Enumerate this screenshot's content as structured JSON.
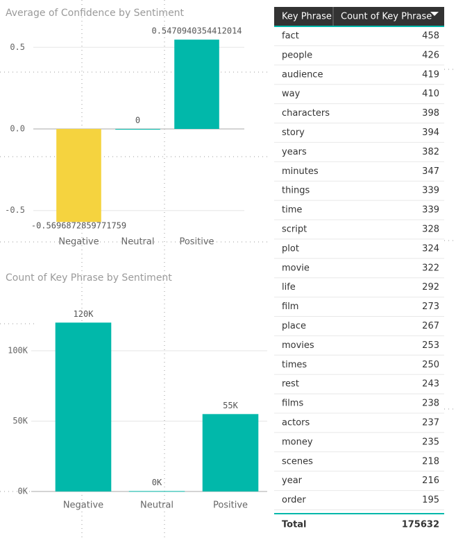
{
  "chart_data": [
    {
      "type": "bar",
      "title": "Average of Confidence by Sentiment",
      "categories": [
        "Negative",
        "Neutral",
        "Positive"
      ],
      "values": [
        -0.5696872859771759,
        0,
        0.5470940354412014
      ],
      "colors": [
        "#F5D33F",
        "#01B8AA",
        "#01B8AA"
      ],
      "ylim": [
        -0.62,
        0.62
      ],
      "yticks": [
        -0.5,
        {
          "value": 0,
          "label": "0.0"
        },
        0.5
      ],
      "grid": true
    },
    {
      "type": "bar",
      "title": "Count of Key Phrase by Sentiment",
      "categories": [
        "Negative",
        "Neutral",
        "Positive"
      ],
      "values": [
        120000,
        300,
        55000
      ],
      "value_labels": [
        "120K",
        "0K",
        "55K"
      ],
      "color": "#01B8AA",
      "ylim": [
        0,
        132500
      ],
      "yticks": [
        {
          "value": 0,
          "label": "0K"
        },
        {
          "value": 50000,
          "label": "50K"
        },
        {
          "value": 100000,
          "label": "100K"
        }
      ],
      "grid": true
    }
  ],
  "table": {
    "columns": [
      "Key Phrase",
      "Count of Key Phrase"
    ],
    "rows": [
      [
        "fact",
        458
      ],
      [
        "people",
        426
      ],
      [
        "audience",
        419
      ],
      [
        "way",
        410
      ],
      [
        "characters",
        398
      ],
      [
        "story",
        394
      ],
      [
        "years",
        382
      ],
      [
        "minutes",
        347
      ],
      [
        "things",
        339
      ],
      [
        "time",
        339
      ],
      [
        "script",
        328
      ],
      [
        "plot",
        324
      ],
      [
        "movie",
        322
      ],
      [
        "life",
        292
      ],
      [
        "film",
        273
      ],
      [
        "place",
        267
      ],
      [
        "movies",
        253
      ],
      [
        "times",
        250
      ],
      [
        "rest",
        243
      ],
      [
        "films",
        238
      ],
      [
        "actors",
        237
      ],
      [
        "money",
        235
      ],
      [
        "scenes",
        218
      ],
      [
        "year",
        216
      ],
      [
        "order",
        195
      ]
    ],
    "total": {
      "label": "Total",
      "value": 175632
    }
  }
}
